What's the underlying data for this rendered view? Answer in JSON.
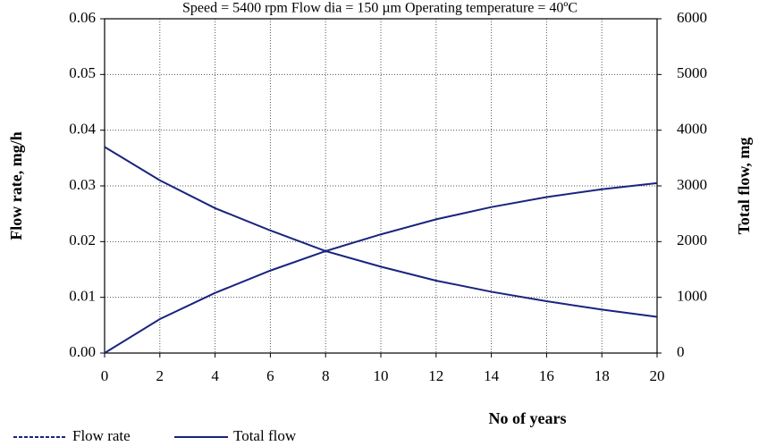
{
  "chart_data": {
    "type": "line",
    "title": "Speed = 5400 rpm     Flow dia = 150 µm     Operating temperature = 40ºC",
    "x_label": "No of years",
    "y_label": "Flow rate, mg/h",
    "y2_label": "Total flow, mg",
    "x": [
      0,
      2,
      4,
      6,
      8,
      10,
      12,
      14,
      16,
      18,
      20
    ],
    "xlim": [
      0,
      20
    ],
    "xticks": [
      0,
      2,
      4,
      6,
      8,
      10,
      12,
      14,
      16,
      18,
      20
    ],
    "ylim": [
      0,
      0.06
    ],
    "yticks": [
      {
        "value": 0,
        "label": "0.00"
      },
      0.01,
      0.02,
      0.03,
      0.04,
      0.05,
      0.06
    ],
    "y2lim": [
      0,
      6000
    ],
    "y2ticks": [
      0,
      1000,
      2000,
      3000,
      4000,
      5000,
      6000
    ],
    "grid": true,
    "series": [
      {
        "name": "Flow rate",
        "color": "#1a237e",
        "dashed": true,
        "values": [
          0.037,
          0.031,
          0.026,
          0.022,
          0.0183,
          0.0155,
          0.013,
          0.011,
          0.0093,
          0.0078,
          0.0065
        ]
      },
      {
        "name": "Total flow",
        "color": "#1a237e",
        "dashed": false,
        "axis": "y2",
        "values": [
          0,
          610,
          1080,
          1480,
          1830,
          2130,
          2400,
          2620,
          2800,
          2940,
          3050
        ]
      }
    ]
  }
}
